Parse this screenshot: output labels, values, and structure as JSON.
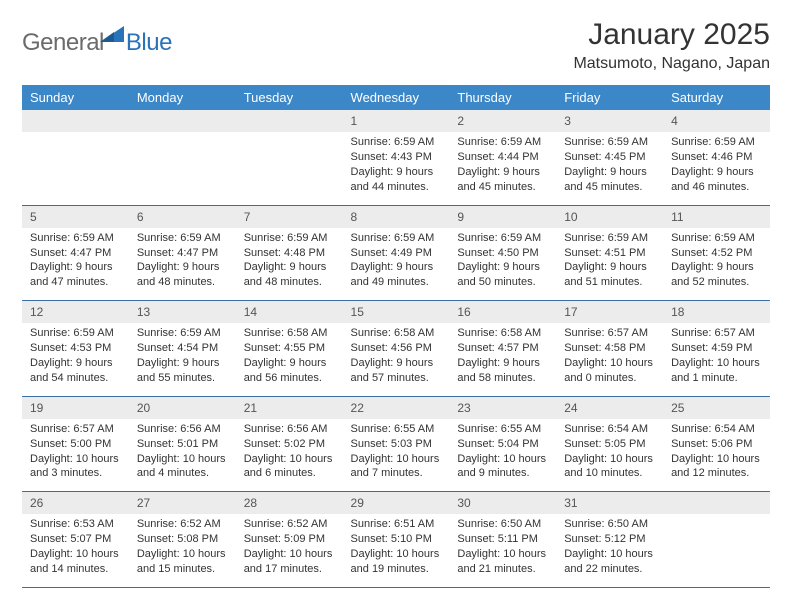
{
  "brand": {
    "part1": "General",
    "part2": "Blue"
  },
  "title": "January 2025",
  "location": "Matsumoto, Nagano, Japan",
  "colors": {
    "header_bg": "#3b87c8",
    "header_fg": "#ffffff",
    "daynum_bg": "#ececec",
    "row_border": "#3b6ea0",
    "logo_gray": "#6b6b6b",
    "logo_blue": "#2a73b8",
    "text": "#333333",
    "page_bg": "#ffffff"
  },
  "day_headers": [
    "Sunday",
    "Monday",
    "Tuesday",
    "Wednesday",
    "Thursday",
    "Friday",
    "Saturday"
  ],
  "label_sunrise": "Sunrise: ",
  "label_sunset": "Sunset: ",
  "label_daylight": "Daylight: ",
  "weeks": [
    [
      null,
      null,
      null,
      {
        "n": "1",
        "sunrise": "6:59 AM",
        "sunset": "4:43 PM",
        "daylight": "9 hours and 44 minutes."
      },
      {
        "n": "2",
        "sunrise": "6:59 AM",
        "sunset": "4:44 PM",
        "daylight": "9 hours and 45 minutes."
      },
      {
        "n": "3",
        "sunrise": "6:59 AM",
        "sunset": "4:45 PM",
        "daylight": "9 hours and 45 minutes."
      },
      {
        "n": "4",
        "sunrise": "6:59 AM",
        "sunset": "4:46 PM",
        "daylight": "9 hours and 46 minutes."
      }
    ],
    [
      {
        "n": "5",
        "sunrise": "6:59 AM",
        "sunset": "4:47 PM",
        "daylight": "9 hours and 47 minutes."
      },
      {
        "n": "6",
        "sunrise": "6:59 AM",
        "sunset": "4:47 PM",
        "daylight": "9 hours and 48 minutes."
      },
      {
        "n": "7",
        "sunrise": "6:59 AM",
        "sunset": "4:48 PM",
        "daylight": "9 hours and 48 minutes."
      },
      {
        "n": "8",
        "sunrise": "6:59 AM",
        "sunset": "4:49 PM",
        "daylight": "9 hours and 49 minutes."
      },
      {
        "n": "9",
        "sunrise": "6:59 AM",
        "sunset": "4:50 PM",
        "daylight": "9 hours and 50 minutes."
      },
      {
        "n": "10",
        "sunrise": "6:59 AM",
        "sunset": "4:51 PM",
        "daylight": "9 hours and 51 minutes."
      },
      {
        "n": "11",
        "sunrise": "6:59 AM",
        "sunset": "4:52 PM",
        "daylight": "9 hours and 52 minutes."
      }
    ],
    [
      {
        "n": "12",
        "sunrise": "6:59 AM",
        "sunset": "4:53 PM",
        "daylight": "9 hours and 54 minutes."
      },
      {
        "n": "13",
        "sunrise": "6:59 AM",
        "sunset": "4:54 PM",
        "daylight": "9 hours and 55 minutes."
      },
      {
        "n": "14",
        "sunrise": "6:58 AM",
        "sunset": "4:55 PM",
        "daylight": "9 hours and 56 minutes."
      },
      {
        "n": "15",
        "sunrise": "6:58 AM",
        "sunset": "4:56 PM",
        "daylight": "9 hours and 57 minutes."
      },
      {
        "n": "16",
        "sunrise": "6:58 AM",
        "sunset": "4:57 PM",
        "daylight": "9 hours and 58 minutes."
      },
      {
        "n": "17",
        "sunrise": "6:57 AM",
        "sunset": "4:58 PM",
        "daylight": "10 hours and 0 minutes."
      },
      {
        "n": "18",
        "sunrise": "6:57 AM",
        "sunset": "4:59 PM",
        "daylight": "10 hours and 1 minute."
      }
    ],
    [
      {
        "n": "19",
        "sunrise": "6:57 AM",
        "sunset": "5:00 PM",
        "daylight": "10 hours and 3 minutes."
      },
      {
        "n": "20",
        "sunrise": "6:56 AM",
        "sunset": "5:01 PM",
        "daylight": "10 hours and 4 minutes."
      },
      {
        "n": "21",
        "sunrise": "6:56 AM",
        "sunset": "5:02 PM",
        "daylight": "10 hours and 6 minutes."
      },
      {
        "n": "22",
        "sunrise": "6:55 AM",
        "sunset": "5:03 PM",
        "daylight": "10 hours and 7 minutes."
      },
      {
        "n": "23",
        "sunrise": "6:55 AM",
        "sunset": "5:04 PM",
        "daylight": "10 hours and 9 minutes."
      },
      {
        "n": "24",
        "sunrise": "6:54 AM",
        "sunset": "5:05 PM",
        "daylight": "10 hours and 10 minutes."
      },
      {
        "n": "25",
        "sunrise": "6:54 AM",
        "sunset": "5:06 PM",
        "daylight": "10 hours and 12 minutes."
      }
    ],
    [
      {
        "n": "26",
        "sunrise": "6:53 AM",
        "sunset": "5:07 PM",
        "daylight": "10 hours and 14 minutes."
      },
      {
        "n": "27",
        "sunrise": "6:52 AM",
        "sunset": "5:08 PM",
        "daylight": "10 hours and 15 minutes."
      },
      {
        "n": "28",
        "sunrise": "6:52 AM",
        "sunset": "5:09 PM",
        "daylight": "10 hours and 17 minutes."
      },
      {
        "n": "29",
        "sunrise": "6:51 AM",
        "sunset": "5:10 PM",
        "daylight": "10 hours and 19 minutes."
      },
      {
        "n": "30",
        "sunrise": "6:50 AM",
        "sunset": "5:11 PM",
        "daylight": "10 hours and 21 minutes."
      },
      {
        "n": "31",
        "sunrise": "6:50 AM",
        "sunset": "5:12 PM",
        "daylight": "10 hours and 22 minutes."
      },
      null
    ]
  ]
}
